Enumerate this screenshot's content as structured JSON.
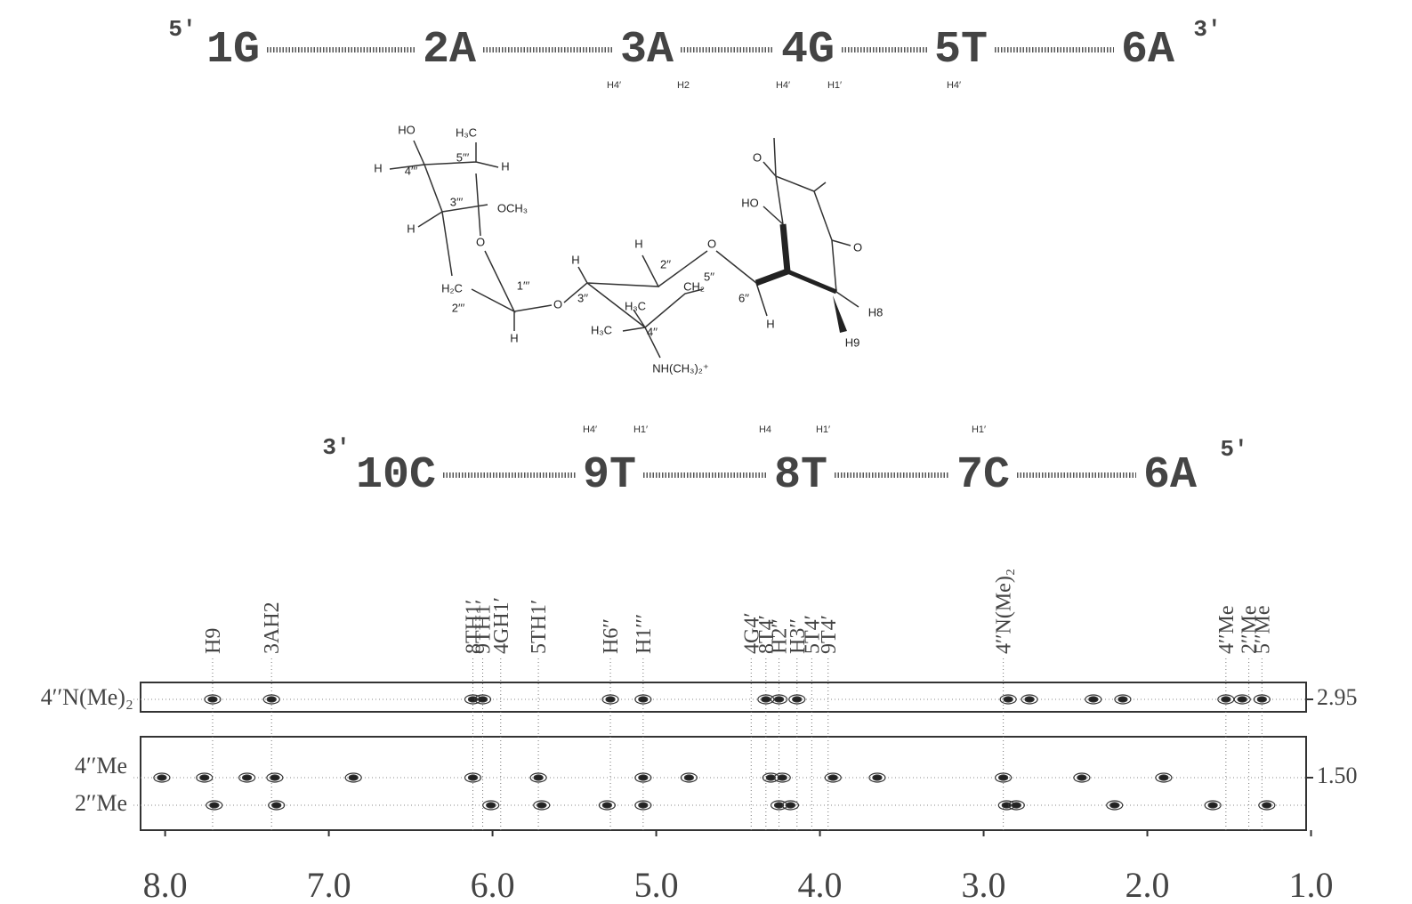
{
  "sequence": {
    "top": {
      "five_prime": "5′",
      "three_prime": "3′",
      "residues": [
        "1G",
        "2A",
        "3A",
        "4G",
        "5T",
        "6A"
      ],
      "protons": [
        "H4′",
        "H2",
        "H4′",
        "H1′",
        "H4′"
      ]
    },
    "bottom": {
      "three_prime": "3′",
      "five_prime": "5′",
      "residues": [
        "10C",
        "9T",
        "8T",
        "7C",
        "6A"
      ],
      "protons": [
        "H4′",
        "H1′",
        "H4",
        "H1′",
        "H1′"
      ]
    }
  },
  "structure": {
    "labels": [
      "HO",
      "H₃C",
      "5′′′",
      "H",
      "4′′′",
      "H",
      "3′′′",
      "OCH₃",
      "H",
      "O",
      "H₂C",
      "1′′′",
      "2′′′",
      "O",
      "H",
      "3′′",
      "H",
      "H",
      "2′′",
      "O",
      "H₃C",
      "CH₂",
      "5′′",
      "6′′",
      "H",
      "H₃C",
      "4′′",
      "NH(CH₃)₂⁺",
      "HO",
      "O",
      "O",
      "H8",
      "H9"
    ]
  },
  "spectrum": {
    "xlim": [
      8.15,
      1.03
    ],
    "xticks": [
      {
        "value": 8,
        "label": "8.0"
      },
      {
        "value": 7,
        "label": "7.0"
      },
      {
        "value": 6,
        "label": "6.0"
      },
      {
        "value": 5,
        "label": "5.0"
      },
      {
        "value": 4,
        "label": "4.0"
      },
      {
        "value": 3,
        "label": "3.0"
      },
      {
        "value": 2,
        "label": "2.0"
      },
      {
        "value": 1,
        "label": "1.0"
      }
    ],
    "peak_labels": [
      {
        "text": "H9",
        "ppm": 7.71
      },
      {
        "text": "3AH2",
        "ppm": 7.35
      },
      {
        "text": "8TH1′",
        "ppm": 6.12
      },
      {
        "text": "9TH1′",
        "ppm": 6.06
      },
      {
        "text": "4GH1′",
        "ppm": 5.95
      },
      {
        "text": "5TH1′",
        "ppm": 5.72
      },
      {
        "text": "H6′′",
        "ppm": 5.28
      },
      {
        "text": "H1′′′",
        "ppm": 5.08
      },
      {
        "text": "4G4′",
        "ppm": 4.42
      },
      {
        "text": "8T4′",
        "ppm": 4.33
      },
      {
        "text": "H2′′",
        "ppm": 4.25
      },
      {
        "text": "H3′′",
        "ppm": 4.14
      },
      {
        "text": "5T4′",
        "ppm": 4.05
      },
      {
        "text": "9T4′",
        "ppm": 3.95
      },
      {
        "text": "4′′N(Me)₂",
        "ppm": 2.88
      },
      {
        "text": "4′′Me",
        "ppm": 1.52
      },
      {
        "text": "2′′Me",
        "ppm": 1.38
      },
      {
        "text": "5′′Me",
        "ppm": 1.3
      }
    ],
    "rows": [
      {
        "label": "4′′N(Me)₂",
        "shift": 2.95,
        "peaks": [
          7.71,
          7.35,
          6.12,
          6.06,
          5.28,
          5.08,
          4.33,
          4.25,
          4.14,
          2.85,
          2.72,
          2.33,
          2.15,
          1.52,
          1.42,
          1.3
        ]
      },
      {
        "label": "4′′Me",
        "shift": {
          "value": 1.5,
          "label": "1.50"
        },
        "peaks": [
          8.02,
          7.76,
          7.5,
          7.33,
          6.85,
          6.12,
          5.72,
          5.08,
          4.8,
          4.3,
          4.23,
          3.92,
          3.65,
          2.88,
          2.4,
          1.9
        ]
      },
      {
        "label": "2′′Me",
        "peaks": [
          7.7,
          7.32,
          6.01,
          5.7,
          5.3,
          5.08,
          4.25,
          4.18,
          2.86,
          2.8,
          2.2,
          1.6,
          1.27
        ]
      }
    ]
  }
}
